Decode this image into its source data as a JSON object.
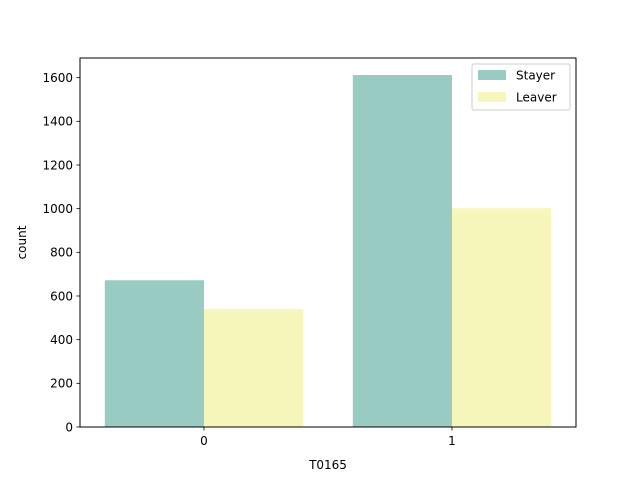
{
  "chart_data": {
    "type": "bar",
    "categories": [
      "0",
      "1"
    ],
    "series": [
      {
        "name": "Stayer",
        "values": [
          672,
          1612
        ],
        "color": "#98cbc2"
      },
      {
        "name": "Leaver",
        "values": [
          540,
          1002
        ],
        "color": "#f7f6bb"
      }
    ],
    "xlabel": "T0165",
    "ylabel": "count",
    "ylim": [
      0,
      1690
    ],
    "yticks": [
      0,
      200,
      400,
      600,
      800,
      1000,
      1200,
      1400,
      1600
    ],
    "grid": false,
    "legend_position": "top-right"
  }
}
